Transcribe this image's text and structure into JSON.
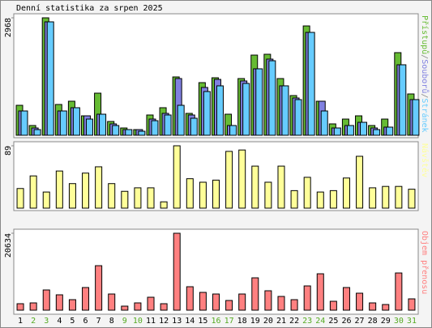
{
  "chart_data": [
    {
      "type": "bar",
      "title": "Denní statistika za srpen 2025",
      "categories": [
        "1",
        "2",
        "3",
        "4",
        "5",
        "6",
        "7",
        "8",
        "9",
        "10",
        "11",
        "12",
        "13",
        "14",
        "15",
        "16",
        "17",
        "18",
        "19",
        "20",
        "21",
        "22",
        "23",
        "24",
        "25",
        "26",
        "27",
        "28",
        "29",
        "30",
        "31"
      ],
      "category_colors": [
        "#000000",
        "#55aa22",
        "#55aa22",
        "#000000",
        "#000000",
        "#000000",
        "#000000",
        "#000000",
        "#55aa22",
        "#55aa22",
        "#000000",
        "#000000",
        "#000000",
        "#000000",
        "#000000",
        "#55aa22",
        "#55aa22",
        "#000000",
        "#000000",
        "#000000",
        "#000000",
        "#000000",
        "#55aa22",
        "#55aa22",
        "#000000",
        "#000000",
        "#000000",
        "#000000",
        "#000000",
        "#55aa22",
        "#55aa22"
      ],
      "legend_separator": "/",
      "ylim": [
        0,
        2968
      ],
      "yticks": [
        2968
      ],
      "series": [
        {
          "name": "Přístupů",
          "color": "#66bb33",
          "values": [
            757,
            246,
            2968,
            778,
            860,
            491,
            1064,
            348,
            184,
            143,
            512,
            696,
            1474,
            553,
            1330,
            1453,
            532,
            1433,
            2026,
            2047,
            1433,
            1003,
            2763,
            860,
            287,
            409,
            491,
            246,
            409,
            2088,
            1044
          ]
        },
        {
          "name": "Souborů",
          "color": "#8080e0",
          "values": [
            614,
            184,
            2866,
            614,
            696,
            491,
            532,
            287,
            143,
            143,
            409,
            553,
            1433,
            512,
            1208,
            1412,
            246,
            1372,
            1679,
            1924,
            1249,
            942,
            2600,
            860,
            184,
            246,
            327,
            184,
            205,
            1781,
            901
          ]
        },
        {
          "name": "Stránek",
          "color": "#66ccff",
          "values": [
            614,
            143,
            2866,
            614,
            696,
            409,
            532,
            246,
            143,
            102,
            368,
            512,
            757,
            430,
            1105,
            1249,
            246,
            1310,
            1679,
            1883,
            1249,
            901,
            2600,
            614,
            184,
            246,
            327,
            143,
            205,
            1781,
            901
          ]
        }
      ]
    },
    {
      "type": "bar",
      "ylim": [
        0,
        89
      ],
      "yticks": [
        89
      ],
      "series": [
        {
          "name": "Návštěv",
          "color": "#ffff99",
          "values": [
            28,
            46,
            23,
            53,
            35,
            50,
            59,
            35,
            24,
            29,
            29,
            9,
            89,
            42,
            37,
            40,
            81,
            83,
            60,
            37,
            60,
            25,
            44,
            23,
            25,
            43,
            74,
            29,
            31,
            31,
            27
          ]
        }
      ]
    },
    {
      "type": "bar",
      "ylim": [
        0,
        20634
      ],
      "yticks": [
        20634
      ],
      "series": [
        {
          "name": "Objem přenosu",
          "color": "#ff8080",
          "values": [
            1736,
            1953,
            5425,
            4123,
            2821,
            6076,
            11935,
            4340,
            1085,
            1953,
            3472,
            1736,
            20634,
            6293,
            4774,
            4340,
            2604,
            4340,
            8680,
            5208,
            3689,
            2821,
            6510,
            9765,
            2387,
            6076,
            4557,
            1953,
            1519,
            9982,
            3038
          ]
        }
      ]
    }
  ]
}
